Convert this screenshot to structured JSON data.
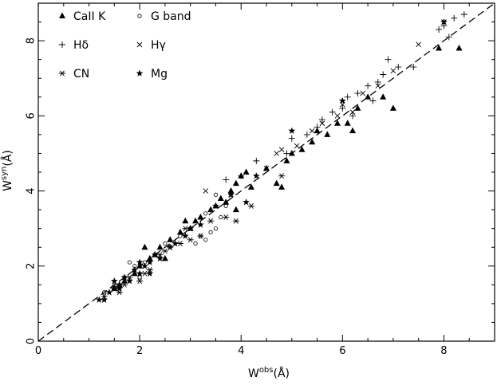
{
  "chart_data": {
    "type": "scatter",
    "xlabel": "W",
    "xlabel_sup": "obs",
    "xlabel_unit": "(Å)",
    "ylabel": "W",
    "ylabel_sup": "syn",
    "ylabel_unit": "(Å)",
    "xlim": [
      0,
      9
    ],
    "ylim": [
      0,
      9
    ],
    "x_ticks": [
      0,
      2,
      4,
      6,
      8
    ],
    "y_ticks": [
      0,
      2,
      4,
      6,
      8
    ],
    "grid": false,
    "legend_position": "top-left",
    "reference_line": {
      "style": "dashed",
      "from": [
        0,
        0
      ],
      "to": [
        9,
        9
      ]
    },
    "series": [
      {
        "name": "CaII K",
        "marker": "triangle",
        "points": [
          [
            2.4,
            2.5
          ],
          [
            2.6,
            2.7
          ],
          [
            2.8,
            2.9
          ],
          [
            2.9,
            3.2
          ],
          [
            3.0,
            3.0
          ],
          [
            3.1,
            3.2
          ],
          [
            3.2,
            3.3
          ],
          [
            3.4,
            3.5
          ],
          [
            3.5,
            3.6
          ],
          [
            3.6,
            3.8
          ],
          [
            3.7,
            3.7
          ],
          [
            3.8,
            4.0
          ],
          [
            3.9,
            4.2
          ],
          [
            4.0,
            4.4
          ],
          [
            4.1,
            4.5
          ],
          [
            3.9,
            3.5
          ],
          [
            4.2,
            4.1
          ],
          [
            4.5,
            4.6
          ],
          [
            4.7,
            4.2
          ],
          [
            4.8,
            4.1
          ],
          [
            4.9,
            4.8
          ],
          [
            5.0,
            5.0
          ],
          [
            5.2,
            5.1
          ],
          [
            5.4,
            5.3
          ],
          [
            5.5,
            5.6
          ],
          [
            5.7,
            5.5
          ],
          [
            5.9,
            5.8
          ],
          [
            6.1,
            5.8
          ],
          [
            6.2,
            5.6
          ],
          [
            6.3,
            6.2
          ],
          [
            6.5,
            6.5
          ],
          [
            6.8,
            6.5
          ],
          [
            7.0,
            6.2
          ],
          [
            7.9,
            7.8
          ],
          [
            8.3,
            7.8
          ],
          [
            2.0,
            2.0
          ],
          [
            2.2,
            2.2
          ],
          [
            2.3,
            2.3
          ],
          [
            2.1,
            2.5
          ],
          [
            1.9,
            1.8
          ],
          [
            1.7,
            1.6
          ],
          [
            1.6,
            1.5
          ],
          [
            1.5,
            1.4
          ],
          [
            2.5,
            2.2
          ]
        ]
      },
      {
        "name": "G band",
        "marker": "circle",
        "points": [
          [
            1.3,
            1.3
          ],
          [
            1.5,
            1.5
          ],
          [
            1.7,
            1.7
          ],
          [
            1.9,
            2.0
          ],
          [
            2.1,
            2.1
          ],
          [
            2.3,
            2.3
          ],
          [
            2.5,
            2.6
          ],
          [
            2.8,
            2.8
          ],
          [
            3.0,
            3.0
          ],
          [
            3.1,
            2.6
          ],
          [
            3.2,
            2.8
          ],
          [
            3.3,
            2.7
          ],
          [
            3.4,
            2.9
          ],
          [
            3.5,
            3.0
          ],
          [
            3.6,
            3.3
          ],
          [
            3.7,
            3.6
          ],
          [
            3.3,
            3.4
          ],
          [
            3.5,
            3.9
          ],
          [
            1.8,
            2.1
          ],
          [
            2.0,
            1.7
          ]
        ]
      },
      {
        "name": "Hδ",
        "marker": "plus",
        "points": [
          [
            4.0,
            4.4
          ],
          [
            4.3,
            4.8
          ],
          [
            5.0,
            5.4
          ],
          [
            5.3,
            5.5
          ],
          [
            5.6,
            5.9
          ],
          [
            5.8,
            6.1
          ],
          [
            6.0,
            6.2
          ],
          [
            6.1,
            6.5
          ],
          [
            6.3,
            6.6
          ],
          [
            6.5,
            6.8
          ],
          [
            6.7,
            6.9
          ],
          [
            6.8,
            7.1
          ],
          [
            6.9,
            7.5
          ],
          [
            7.1,
            7.3
          ],
          [
            7.4,
            7.3
          ],
          [
            7.9,
            8.3
          ],
          [
            8.0,
            8.4
          ],
          [
            8.2,
            8.6
          ],
          [
            8.4,
            8.7
          ],
          [
            8.1,
            8.1
          ],
          [
            6.6,
            6.4
          ],
          [
            5.5,
            5.7
          ],
          [
            4.9,
            5.0
          ],
          [
            3.7,
            4.3
          ],
          [
            6.2,
            6.0
          ]
        ]
      },
      {
        "name": "Hγ",
        "marker": "cross",
        "points": [
          [
            3.3,
            4.0
          ],
          [
            4.5,
            4.6
          ],
          [
            4.8,
            5.1
          ],
          [
            5.1,
            5.2
          ],
          [
            5.4,
            5.6
          ],
          [
            5.9,
            6.0
          ],
          [
            6.0,
            6.3
          ],
          [
            6.4,
            6.6
          ],
          [
            6.7,
            6.8
          ],
          [
            7.0,
            7.2
          ],
          [
            7.5,
            7.9
          ],
          [
            8.0,
            8.5
          ],
          [
            4.7,
            5.0
          ],
          [
            5.6,
            5.8
          ],
          [
            6.2,
            6.1
          ],
          [
            3.8,
            3.9
          ]
        ]
      },
      {
        "name": "CN",
        "marker": "asterisk",
        "points": [
          [
            1.3,
            1.2
          ],
          [
            1.5,
            1.4
          ],
          [
            1.6,
            1.3
          ],
          [
            1.8,
            1.7
          ],
          [
            2.0,
            1.6
          ],
          [
            2.2,
            1.9
          ],
          [
            2.4,
            2.3
          ],
          [
            2.6,
            2.5
          ],
          [
            2.8,
            2.6
          ],
          [
            3.0,
            2.7
          ],
          [
            3.2,
            2.8
          ],
          [
            3.4,
            3.2
          ],
          [
            3.7,
            3.3
          ],
          [
            3.9,
            3.2
          ],
          [
            4.2,
            3.6
          ],
          [
            4.8,
            4.4
          ],
          [
            1.7,
            1.5
          ],
          [
            2.1,
            1.8
          ],
          [
            2.5,
            2.4
          ],
          [
            2.9,
            3.0
          ]
        ]
      },
      {
        "name": "Mg",
        "marker": "star",
        "points": [
          [
            1.2,
            1.1
          ],
          [
            1.3,
            1.1
          ],
          [
            1.4,
            1.3
          ],
          [
            1.5,
            1.4
          ],
          [
            1.6,
            1.5
          ],
          [
            1.7,
            1.7
          ],
          [
            1.8,
            1.6
          ],
          [
            1.9,
            1.9
          ],
          [
            2.0,
            1.8
          ],
          [
            2.1,
            2.0
          ],
          [
            2.2,
            2.1
          ],
          [
            2.3,
            2.3
          ],
          [
            2.4,
            2.2
          ],
          [
            2.6,
            2.5
          ],
          [
            2.7,
            2.6
          ],
          [
            2.9,
            2.8
          ],
          [
            3.0,
            3.0
          ],
          [
            3.2,
            3.1
          ],
          [
            3.5,
            3.6
          ],
          [
            3.8,
            3.9
          ],
          [
            4.1,
            3.7
          ],
          [
            4.3,
            4.4
          ],
          [
            5.0,
            5.6
          ],
          [
            6.0,
            6.4
          ],
          [
            8.0,
            8.5
          ],
          [
            1.5,
            1.6
          ],
          [
            1.6,
            1.4
          ],
          [
            2.0,
            2.1
          ],
          [
            2.2,
            1.8
          ]
        ]
      }
    ]
  }
}
